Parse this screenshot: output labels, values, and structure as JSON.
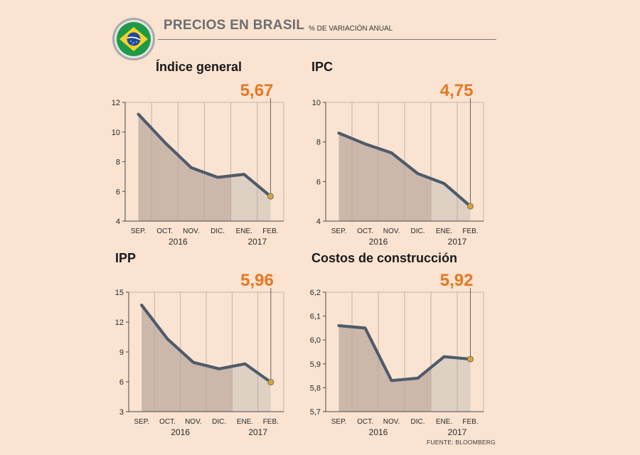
{
  "header": {
    "title": "PRECIOS EN BRASIL",
    "subtitle": "% DE VARIACIÓN ANUAL",
    "flag_icon": "brazil-flag-icon"
  },
  "source": "FUENTE: BLOOMBERG",
  "colors": {
    "background": "#fae3d1",
    "line": "#4e5c6b",
    "area": "#c7b3a6",
    "area_light": "#ddcfc3",
    "highlight": "#e87722",
    "marker": "#d6a73d"
  },
  "chart_data": [
    {
      "type": "area",
      "title": "Índice general",
      "categories": [
        "SEP.",
        "OCT.",
        "NOV.",
        "DIC.",
        "ENE.",
        "FEB."
      ],
      "year_labels": [
        "2016",
        "2017"
      ],
      "values": [
        11.2,
        9.3,
        7.6,
        6.95,
        7.15,
        5.67
      ],
      "last_value_label": "5,67",
      "ylim": [
        4,
        12
      ],
      "yticks": [
        4,
        6,
        8,
        10,
        12
      ],
      "ytick_labels": [
        "4",
        "6",
        "8",
        "10",
        "12"
      ]
    },
    {
      "type": "area",
      "title": "IPC",
      "categories": [
        "SEP.",
        "OCT.",
        "NOV.",
        "DIC.",
        "ENE.",
        "FEB."
      ],
      "year_labels": [
        "2016",
        "2017"
      ],
      "values": [
        8.45,
        7.9,
        7.45,
        6.4,
        5.9,
        4.75
      ],
      "last_value_label": "4,75",
      "ylim": [
        4,
        10
      ],
      "yticks": [
        4,
        6,
        8,
        10
      ],
      "ytick_labels": [
        "4",
        "6",
        "8",
        "10"
      ]
    },
    {
      "type": "area",
      "title": "IPP",
      "categories": [
        "SEP.",
        "OCT.",
        "NOV.",
        "DIC.",
        "ENE.",
        "FEB."
      ],
      "year_labels": [
        "2016",
        "2017"
      ],
      "values": [
        13.7,
        10.3,
        7.95,
        7.3,
        7.8,
        5.96
      ],
      "last_value_label": "5,96",
      "ylim": [
        3,
        15
      ],
      "yticks": [
        3,
        6,
        9,
        12,
        15
      ],
      "ytick_labels": [
        "3",
        "6",
        "9",
        "12",
        "15"
      ]
    },
    {
      "type": "area",
      "title": "Costos de construcción",
      "categories": [
        "SEP.",
        "OCT.",
        "NOV.",
        "DIC.",
        "ENE.",
        "FEB."
      ],
      "year_labels": [
        "2016",
        "2017"
      ],
      "values": [
        6.06,
        6.05,
        5.83,
        5.84,
        5.93,
        5.92
      ],
      "last_value_label": "5,92",
      "ylim": [
        5.7,
        6.2
      ],
      "yticks": [
        5.7,
        5.8,
        5.9,
        6.0,
        6.1,
        6.2
      ],
      "ytick_labels": [
        "5,7",
        "5,8",
        "5,9",
        "6,0",
        "6,1",
        "6,2"
      ]
    }
  ]
}
